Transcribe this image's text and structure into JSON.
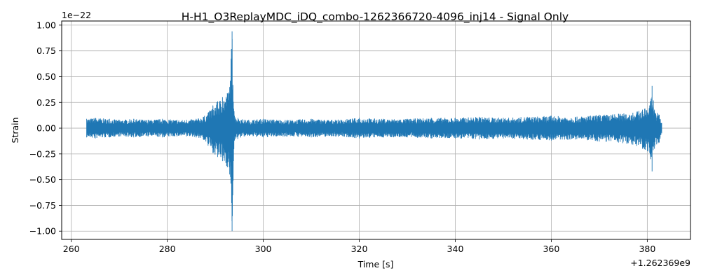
{
  "chart_data": {
    "type": "line",
    "title": "H-H1_O3ReplayMDC_iDQ_combo-1262366720-4096_inj14 - Signal Only",
    "xlabel": "Time [s]",
    "ylabel": "Strain",
    "x_offset_label": "+1.262369e9",
    "y_scale_label": "1e−22",
    "xlim": [
      258,
      389
    ],
    "ylim": [
      -1.08,
      1.04
    ],
    "x_ticks": [
      260,
      280,
      300,
      320,
      340,
      360,
      380
    ],
    "x_tick_labels": [
      "260",
      "280",
      "300",
      "320",
      "340",
      "360",
      "380"
    ],
    "y_ticks": [
      -1.0,
      -0.75,
      -0.5,
      -0.25,
      0.0,
      0.25,
      0.5,
      0.75,
      1.0
    ],
    "y_tick_labels": [
      "−1.00",
      "−0.75",
      "−0.50",
      "−0.25",
      "0.00",
      "0.25",
      "0.50",
      "0.75",
      "1.00"
    ],
    "grid": true,
    "color": "#1f77b4",
    "series": [
      {
        "name": "",
        "x": [
          263.2,
          265,
          268,
          270,
          273,
          276,
          279,
          282,
          284,
          286,
          287.5,
          288.5,
          289.5,
          290.5,
          291.5,
          292.5,
          293,
          293.5,
          294,
          296,
          300,
          305,
          310,
          315,
          320,
          325,
          330,
          335,
          340,
          345,
          350,
          355,
          360,
          365,
          370,
          374,
          377,
          379,
          380.5,
          381,
          381.5,
          382.5,
          383
        ],
        "upper": [
          0.09,
          0.1,
          0.09,
          0.08,
          0.09,
          0.08,
          0.09,
          0.08,
          0.08,
          0.09,
          0.11,
          0.15,
          0.22,
          0.26,
          0.3,
          0.34,
          0.4,
          0.94,
          0.12,
          0.08,
          0.09,
          0.08,
          0.09,
          0.08,
          0.1,
          0.09,
          0.09,
          0.1,
          0.1,
          0.11,
          0.1,
          0.11,
          0.12,
          0.11,
          0.13,
          0.14,
          0.15,
          0.18,
          0.22,
          0.41,
          0.18,
          0.13,
          0.05
        ],
        "lower": [
          -0.09,
          -0.1,
          -0.09,
          -0.08,
          -0.09,
          -0.08,
          -0.09,
          -0.08,
          -0.08,
          -0.09,
          -0.11,
          -0.17,
          -0.24,
          -0.28,
          -0.32,
          -0.38,
          -0.45,
          -1.0,
          -0.12,
          -0.08,
          -0.09,
          -0.08,
          -0.09,
          -0.08,
          -0.1,
          -0.09,
          -0.09,
          -0.1,
          -0.1,
          -0.11,
          -0.1,
          -0.11,
          -0.12,
          -0.11,
          -0.13,
          -0.14,
          -0.16,
          -0.2,
          -0.24,
          -0.42,
          -0.2,
          -0.14,
          -0.05
        ]
      }
    ]
  }
}
